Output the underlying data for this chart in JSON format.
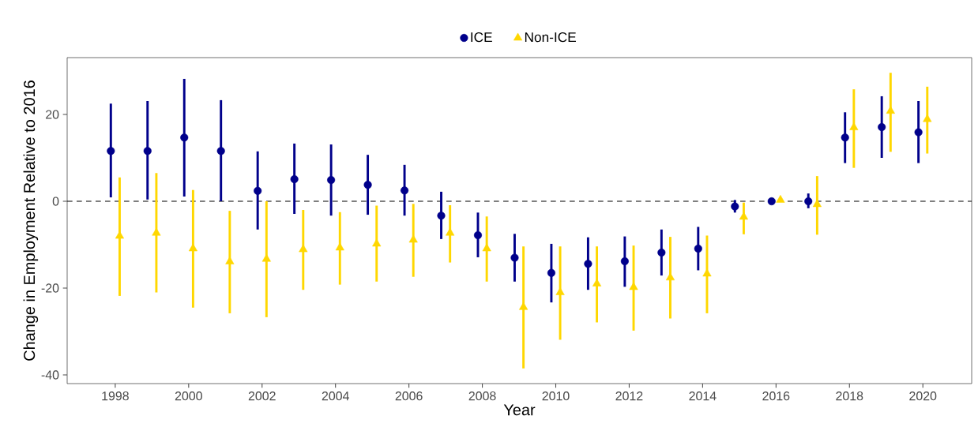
{
  "chart_data": {
    "type": "scatter",
    "xlabel": "Year",
    "ylabel": "Change in Employment Relative to 2016",
    "series": [
      {
        "name": "ICE",
        "color": "#00008b",
        "marker": "circle",
        "x": [
          1997.88,
          1998.88,
          1999.88,
          2000.88,
          2001.88,
          2002.88,
          2003.88,
          2004.88,
          2005.88,
          2006.88,
          2007.88,
          2008.88,
          2009.88,
          2010.88,
          2011.88,
          2012.88,
          2013.88,
          2014.88,
          2015.88,
          2016.88,
          2017.88,
          2018.88,
          2019.88
        ],
        "values": [
          11.6,
          11.6,
          14.7,
          11.6,
          2.4,
          5.1,
          4.9,
          3.8,
          2.5,
          -3.3,
          -7.8,
          -13.0,
          -16.5,
          -14.4,
          -13.8,
          -11.8,
          -10.9,
          -1.2,
          0,
          0,
          14.7,
          17.1,
          15.9
        ],
        "errors": [
          [
            0.9,
            22.5
          ],
          [
            0.4,
            23.1
          ],
          [
            1.1,
            28.2
          ],
          [
            0,
            23.3
          ],
          [
            -6.5,
            11.5
          ],
          [
            -2.9,
            13.3
          ],
          [
            -3.3,
            13.1
          ],
          [
            -3.1,
            10.7
          ],
          [
            -3.3,
            8.4
          ],
          [
            -8.7,
            2.2
          ],
          [
            -12.9,
            -2.6
          ],
          [
            -18.5,
            -7.5
          ],
          [
            -23.3,
            -9.8
          ],
          [
            -20.4,
            -8.3
          ],
          [
            -19.7,
            -8.1
          ],
          [
            -17.1,
            -6.5
          ],
          [
            -15.9,
            -5.9
          ],
          [
            -2.6,
            0.3
          ],
          null,
          [
            -1.6,
            1.8
          ],
          [
            8.8,
            20.5
          ],
          [
            10.0,
            24.2
          ],
          [
            8.8,
            23.1
          ]
        ]
      },
      {
        "name": "Non-ICE",
        "color": "#ffd700",
        "marker": "triangle",
        "x": [
          1998.12,
          1999.12,
          2000.12,
          2001.12,
          2002.12,
          2003.12,
          2004.12,
          2005.12,
          2006.12,
          2007.12,
          2008.12,
          2009.12,
          2010.12,
          2011.12,
          2012.12,
          2013.12,
          2014.12,
          2015.12,
          2016.12,
          2017.12,
          2018.12,
          2019.12,
          2020.12
        ],
        "values": [
          -8.0,
          -7.3,
          -10.9,
          -13.9,
          -13.3,
          -11.1,
          -10.7,
          -9.8,
          -8.9,
          -7.3,
          -10.9,
          -24.4,
          -21.0,
          -19.0,
          -19.8,
          -17.6,
          -16.7,
          -3.6,
          0.3,
          -0.7,
          17.0,
          20.8,
          18.9
        ],
        "errors": [
          [
            -21.8,
            5.5
          ],
          [
            -21.0,
            6.5
          ],
          [
            -24.5,
            2.6
          ],
          [
            -25.8,
            -2.2
          ],
          [
            -26.7,
            0
          ],
          [
            -20.4,
            -2.0
          ],
          [
            -19.2,
            -2.5
          ],
          [
            -18.5,
            -1.0
          ],
          [
            -17.4,
            -0.6
          ],
          [
            -14.1,
            -0.9
          ],
          [
            -18.5,
            -3.5
          ],
          [
            -38.5,
            -10.4
          ],
          [
            -31.9,
            -10.4
          ],
          [
            -27.9,
            -10.4
          ],
          [
            -29.8,
            -10.2
          ],
          [
            -27.0,
            -8.2
          ],
          [
            -25.8,
            -7.9
          ],
          [
            -7.6,
            -0.3
          ],
          null,
          [
            -7.7,
            5.8
          ],
          [
            7.7,
            25.8
          ],
          [
            11.4,
            29.6
          ],
          [
            11.0,
            26.4
          ]
        ]
      }
    ],
    "xlim": [
      1996.69,
      2021.33
    ],
    "ylim": [
      -42.0,
      33.1
    ],
    "xticks": [
      1998,
      2000,
      2002,
      2004,
      2006,
      2008,
      2010,
      2012,
      2014,
      2016,
      2018,
      2020
    ],
    "yticks": [
      -40,
      -20,
      0,
      20
    ],
    "ref_lines": [
      {
        "axis": "y",
        "value": 0,
        "color": "#000000",
        "line_style": "dashed"
      }
    ],
    "legend": "top",
    "grid": false
  }
}
